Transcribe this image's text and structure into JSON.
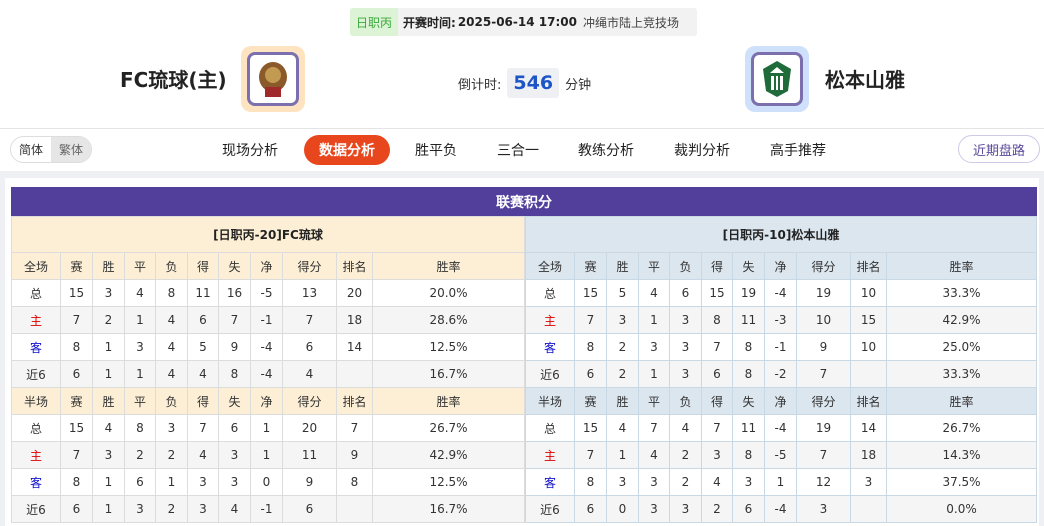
{
  "match": {
    "league": "日职丙",
    "time_label": "开赛时间:",
    "time": "2025-06-14 17:00",
    "venue": "冲绳市陆上竞技场",
    "home": "FC琉球(主)",
    "away": "松本山雅",
    "countdown_label": "倒计时:",
    "countdown": "546",
    "countdown_unit": "分钟"
  },
  "colors": {
    "accent": "#e8461c",
    "title_bar": "#523f9c",
    "home_bg": "#fcefd6",
    "away_bg": "#dce6ef"
  },
  "lang": {
    "simplified": "简体",
    "traditional": "繁体"
  },
  "tabs": [
    "现场分析",
    "数据分析",
    "胜平负",
    "三合一",
    "教练分析",
    "裁判分析",
    "高手推荐"
  ],
  "active_tab": "数据分析",
  "recent_button": "近期盘路",
  "section_title": "联赛积分",
  "home_table": {
    "title": "[日职丙-20]FC琉球",
    "full_header": [
      "全场",
      "赛",
      "胜",
      "平",
      "负",
      "得",
      "失",
      "净",
      "得分",
      "排名",
      "胜率"
    ],
    "full_rows": [
      [
        "总",
        "15",
        "3",
        "4",
        "8",
        "11",
        "16",
        "-5",
        "13",
        "20",
        "20.0%"
      ],
      [
        "主",
        "7",
        "2",
        "1",
        "4",
        "6",
        "7",
        "-1",
        "7",
        "18",
        "28.6%"
      ],
      [
        "客",
        "8",
        "1",
        "3",
        "4",
        "5",
        "9",
        "-4",
        "6",
        "14",
        "12.5%"
      ],
      [
        "近6",
        "6",
        "1",
        "1",
        "4",
        "4",
        "8",
        "-4",
        "4",
        "",
        "16.7%"
      ]
    ],
    "half_header": [
      "半场",
      "赛",
      "胜",
      "平",
      "负",
      "得",
      "失",
      "净",
      "得分",
      "排名",
      "胜率"
    ],
    "half_rows": [
      [
        "总",
        "15",
        "4",
        "8",
        "3",
        "7",
        "6",
        "1",
        "20",
        "7",
        "26.7%"
      ],
      [
        "主",
        "7",
        "3",
        "2",
        "2",
        "4",
        "3",
        "1",
        "11",
        "9",
        "42.9%"
      ],
      [
        "客",
        "8",
        "1",
        "6",
        "1",
        "3",
        "3",
        "0",
        "9",
        "8",
        "12.5%"
      ],
      [
        "近6",
        "6",
        "1",
        "3",
        "2",
        "3",
        "4",
        "-1",
        "6",
        "",
        "16.7%"
      ]
    ]
  },
  "away_table": {
    "title": "[日职丙-10]松本山雅",
    "full_header": [
      "全场",
      "赛",
      "胜",
      "平",
      "负",
      "得",
      "失",
      "净",
      "得分",
      "排名",
      "胜率"
    ],
    "full_rows": [
      [
        "总",
        "15",
        "5",
        "4",
        "6",
        "15",
        "19",
        "-4",
        "19",
        "10",
        "33.3%"
      ],
      [
        "主",
        "7",
        "3",
        "1",
        "3",
        "8",
        "11",
        "-3",
        "10",
        "15",
        "42.9%"
      ],
      [
        "客",
        "8",
        "2",
        "3",
        "3",
        "7",
        "8",
        "-1",
        "9",
        "10",
        "25.0%"
      ],
      [
        "近6",
        "6",
        "2",
        "1",
        "3",
        "6",
        "8",
        "-2",
        "7",
        "",
        "33.3%"
      ]
    ],
    "half_header": [
      "半场",
      "赛",
      "胜",
      "平",
      "负",
      "得",
      "失",
      "净",
      "得分",
      "排名",
      "胜率"
    ],
    "half_rows": [
      [
        "总",
        "15",
        "4",
        "7",
        "4",
        "7",
        "11",
        "-4",
        "19",
        "14",
        "26.7%"
      ],
      [
        "主",
        "7",
        "1",
        "4",
        "2",
        "3",
        "8",
        "-5",
        "7",
        "18",
        "14.3%"
      ],
      [
        "客",
        "8",
        "3",
        "3",
        "2",
        "4",
        "3",
        "1",
        "12",
        "3",
        "37.5%"
      ],
      [
        "近6",
        "6",
        "0",
        "3",
        "3",
        "2",
        "6",
        "-4",
        "3",
        "",
        "0.0%"
      ]
    ]
  }
}
